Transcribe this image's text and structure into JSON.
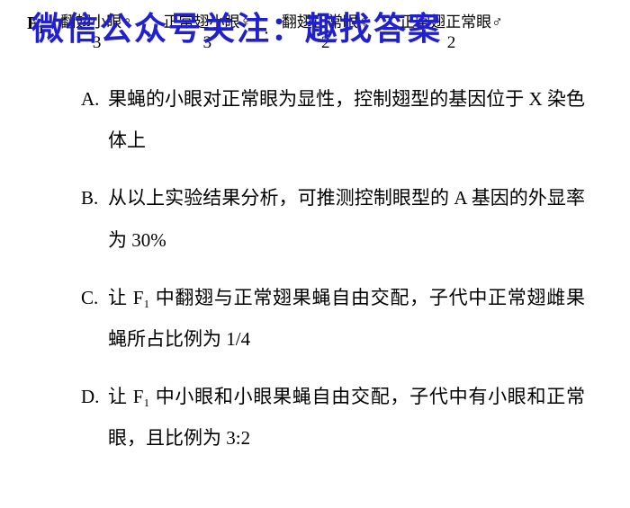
{
  "watermark": "微信公众号关注：趣找答案",
  "header": {
    "label_prefix": "F",
    "label_sub": "1",
    "phenotypes": [
      {
        "text": "翻翅小眼♀",
        "ratio": "3"
      },
      {
        "text": "正常翅小眼♀",
        "ratio": "3"
      },
      {
        "text": "翻翅正常眼♀",
        "ratio": "2"
      },
      {
        "text": "正常翅正常眼♂",
        "ratio": "2"
      }
    ]
  },
  "options": [
    {
      "label": "A.",
      "text": "果蝇的小眼对正常眼为显性，控制翅型的基因位于 X 染色体上"
    },
    {
      "label": "B.",
      "text": "从以上实验结果分析，可推测控制眼型的 A 基因的外显率为 30%"
    },
    {
      "label": "C.",
      "text": "让 F₁ 中翻翅与正常翅果蝇自由交配，子代中正常翅雌果蝇所占比例为 1/4"
    },
    {
      "label": "D.",
      "text": "让 F₁ 中小眼和小眼果蝇自由交配，子代中有小眼和正常眼，且比例为 3:2"
    }
  ],
  "colors": {
    "watermark": "#2020d0",
    "text": "#000000",
    "background": "#ffffff"
  }
}
